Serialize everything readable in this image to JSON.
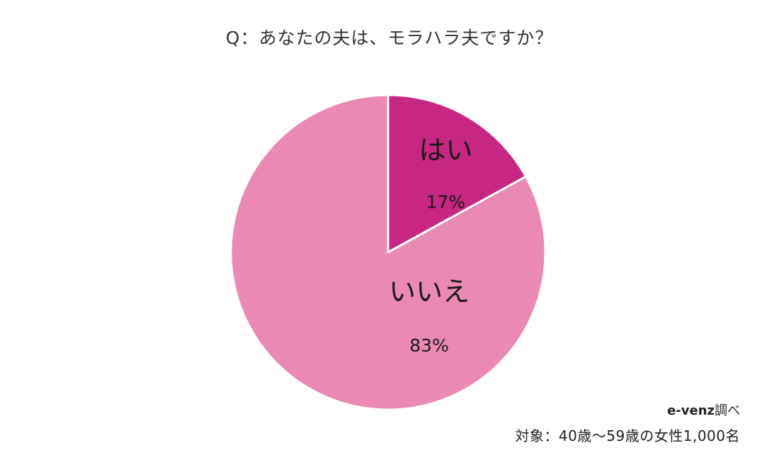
{
  "chart_data": {
    "type": "pie",
    "title": "Q：あなたの夫は、モラハラ夫ですか？",
    "categories": [
      "はい",
      "いいえ"
    ],
    "values": [
      17,
      83
    ],
    "value_labels": [
      "17%",
      "83%"
    ],
    "colors": [
      "#c72782",
      "#ea89b4"
    ],
    "start": "top, clockwise",
    "legend": "none (labels inside slices)"
  },
  "source": {
    "name": "e-venz",
    "suffix": "調べ"
  },
  "subject": "対象：40歳〜59歳の女性1,000名"
}
